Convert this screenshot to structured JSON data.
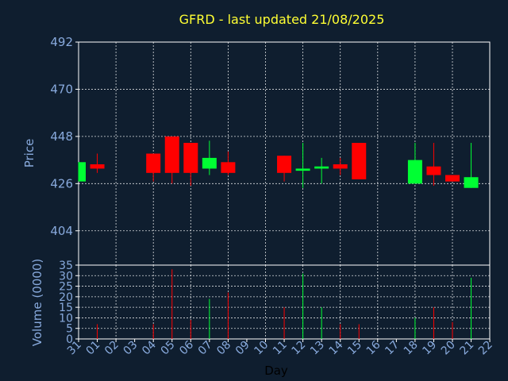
{
  "chart_data": [
    {
      "type": "candlestick",
      "title": "GFRD - last updated 21/08/2025",
      "ylabel": "Price",
      "ylim": [
        388,
        492
      ],
      "yticks": [
        404,
        426,
        448,
        470,
        492
      ],
      "grid": true,
      "up_color": "#00ff33",
      "down_color": "#ff0000",
      "candles": [
        {
          "day": "31",
          "open": 427,
          "high": 436,
          "low": 427,
          "close": 436
        },
        {
          "day": "01",
          "open": 435,
          "high": 440,
          "low": 431,
          "close": 433
        },
        {
          "day": "04",
          "open": 440,
          "high": 440,
          "low": 427,
          "close": 431
        },
        {
          "day": "05",
          "open": 448,
          "high": 448,
          "low": 426,
          "close": 431
        },
        {
          "day": "06",
          "open": 445,
          "high": 445,
          "low": 425,
          "close": 431
        },
        {
          "day": "07",
          "open": 433,
          "high": 446,
          "low": 430,
          "close": 438
        },
        {
          "day": "08",
          "open": 436,
          "high": 441,
          "low": 430,
          "close": 431
        },
        {
          "day": "11",
          "open": 439,
          "high": 439,
          "low": 427,
          "close": 431
        },
        {
          "day": "12",
          "open": 432,
          "high": 445,
          "low": 424,
          "close": 433
        },
        {
          "day": "13",
          "open": 433,
          "high": 438,
          "low": 426,
          "close": 434
        },
        {
          "day": "14",
          "open": 435,
          "high": 438,
          "low": 430,
          "close": 433
        },
        {
          "day": "15",
          "open": 445,
          "high": 445,
          "low": 428,
          "close": 428
        },
        {
          "day": "18",
          "open": 426,
          "high": 445,
          "low": 426,
          "close": 437
        },
        {
          "day": "19",
          "open": 434,
          "high": 445,
          "low": 425,
          "close": 430
        },
        {
          "day": "20",
          "open": 430,
          "high": 430,
          "low": 427,
          "close": 427
        },
        {
          "day": "21",
          "open": 424,
          "high": 445,
          "low": 424,
          "close": 429
        }
      ]
    },
    {
      "type": "bar",
      "ylabel": "Volume (0000)",
      "xlabel": "Day",
      "ylim": [
        0,
        35
      ],
      "yticks": [
        0,
        5,
        10,
        15,
        20,
        25,
        30,
        35
      ],
      "grid": true,
      "x_ticks": [
        "31",
        "01",
        "02",
        "03",
        "04",
        "05",
        "06",
        "07",
        "08",
        "09",
        "10",
        "11",
        "12",
        "13",
        "14",
        "15",
        "16",
        "17",
        "18",
        "19",
        "20",
        "21",
        "22"
      ],
      "bars": [
        {
          "day": "31",
          "value": 0,
          "up": true
        },
        {
          "day": "01",
          "value": 7,
          "up": false
        },
        {
          "day": "04",
          "value": 7,
          "up": false
        },
        {
          "day": "05",
          "value": 33,
          "up": false
        },
        {
          "day": "06",
          "value": 9,
          "up": false
        },
        {
          "day": "07",
          "value": 19,
          "up": true
        },
        {
          "day": "08",
          "value": 22,
          "up": false
        },
        {
          "day": "11",
          "value": 15,
          "up": false
        },
        {
          "day": "12",
          "value": 31,
          "up": true
        },
        {
          "day": "13",
          "value": 15,
          "up": true
        },
        {
          "day": "14",
          "value": 7,
          "up": false
        },
        {
          "day": "15",
          "value": 7,
          "up": false
        },
        {
          "day": "18",
          "value": 10,
          "up": true
        },
        {
          "day": "19",
          "value": 15,
          "up": false
        },
        {
          "day": "20",
          "value": 8,
          "up": false
        },
        {
          "day": "21",
          "value": 29,
          "up": true
        }
      ]
    }
  ]
}
